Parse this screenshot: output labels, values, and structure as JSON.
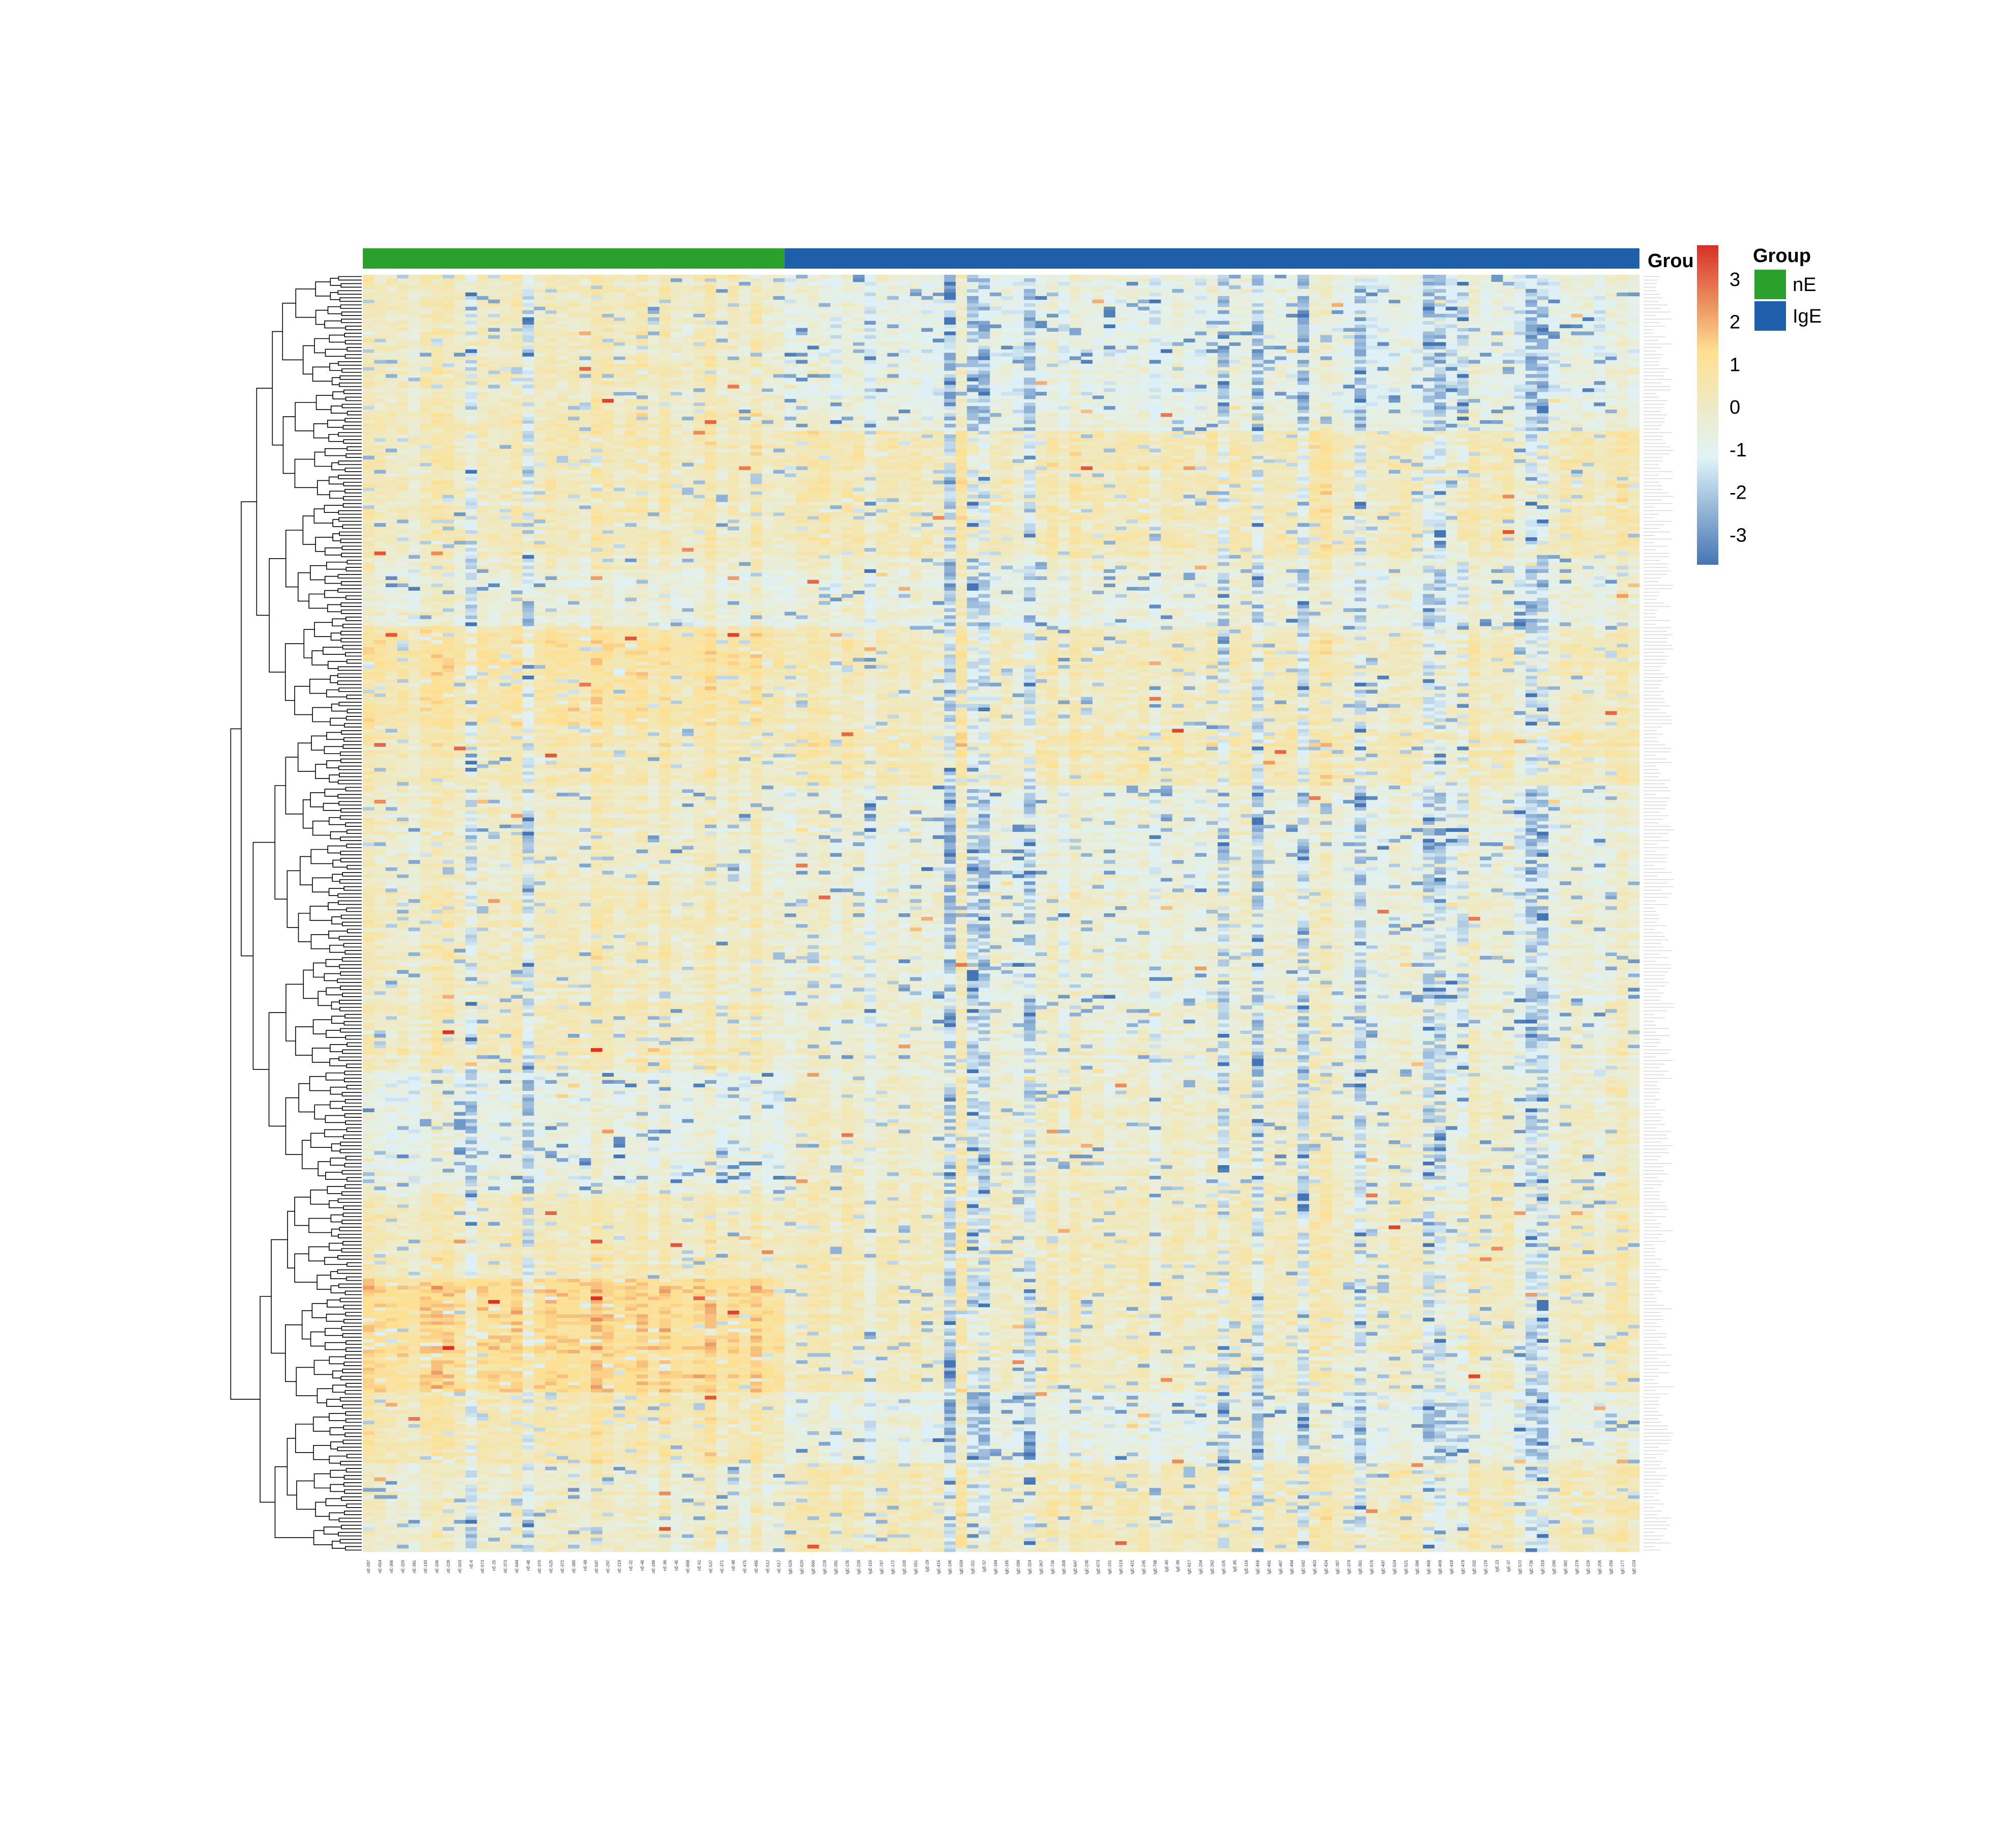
{
  "chart_data": {
    "type": "heatmap",
    "annotation_track": {
      "label": "Grou",
      "groups": [
        {
          "name": "nE",
          "color": "#2ca02c",
          "n_columns": 37
        },
        {
          "name": "IgE",
          "color": "#1f5faa",
          "n_columns": 75
        }
      ]
    },
    "column_labels": {
      "nE": [
        "nE-287",
        "nE-654",
        "nE-366",
        "nE-326",
        "nE-381",
        "nE-143",
        "nE-336",
        "nE-228",
        "nE-503",
        "nE-6",
        "nE-573",
        "nE-25",
        "nE-373",
        "nE-644",
        "nE-48",
        "nE-370",
        "nE-525",
        "nE-372",
        "nE-380",
        "nE-49",
        "nE-547",
        "nE-297",
        "nE-219",
        "nE-32",
        "nE-46",
        "nE-186",
        "nE-96",
        "nE-45",
        "nE-668",
        "nE-61",
        "nE-537",
        "nE-371",
        "nE-98",
        "nE-475",
        "nE-495",
        "nE-512",
        "nE-517"
      ],
      "IgE": [
        "IgE-526",
        "IgE-620",
        "IgE-660",
        "IgE-228",
        "IgE-391",
        "IgE-135",
        "IgE-239",
        "IgE-110",
        "IgE-787",
        "IgE-172",
        "IgE-100",
        "IgE-551",
        "IgE-29",
        "IgE-415",
        "IgE-196",
        "IgE-559",
        "IgE-311",
        "IgE-57",
        "IgE-184",
        "IgE-185",
        "IgE-289",
        "IgE-324",
        "IgE-367",
        "IgE-736",
        "IgE-308",
        "IgE-647",
        "IgE-236",
        "IgE-673",
        "IgE-151",
        "IgE-519",
        "IgE-421",
        "IgE-245",
        "IgE-798",
        "IgE-80",
        "IgE-86",
        "IgE-617",
        "IgE-204",
        "IgE-262",
        "IgE-105",
        "IgE-85",
        "IgE-116",
        "IgE-456",
        "IgE-491",
        "IgE-487",
        "IgE-494",
        "IgE-562",
        "IgE-403",
        "IgE-424",
        "IgE-397",
        "IgE-379",
        "IgE-361",
        "IgE-576",
        "IgE-497",
        "IgE-524",
        "IgE-521",
        "IgE-396",
        "IgE-468",
        "IgE-409",
        "IgE-418",
        "IgE-479",
        "IgE-332",
        "IgE-129",
        "IgE-23",
        "IgE-37",
        "IgE-572",
        "IgE-736",
        "IgE-318",
        "IgE-290",
        "IgE-382",
        "IgE-279",
        "IgE-226",
        "IgE-206",
        "IgE-256",
        "IgE-177",
        "IgE-224"
      ]
    },
    "n_rows": 360,
    "row_dendrogram": true,
    "column_dendrogram": false,
    "colorbar": {
      "ticks": [
        3,
        2,
        1,
        0,
        -1,
        -2,
        -3
      ],
      "range": [
        -3.7,
        3.8
      ],
      "colors": [
        "#4575b4",
        "#e0f3f8",
        "#fee090",
        "#d73027"
      ]
    },
    "legend": {
      "title": "Group",
      "placement": "right",
      "entries": [
        {
          "label": "nE",
          "color": "#2ca02c"
        },
        {
          "label": "IgE",
          "color": "#1f5faa"
        }
      ]
    }
  }
}
